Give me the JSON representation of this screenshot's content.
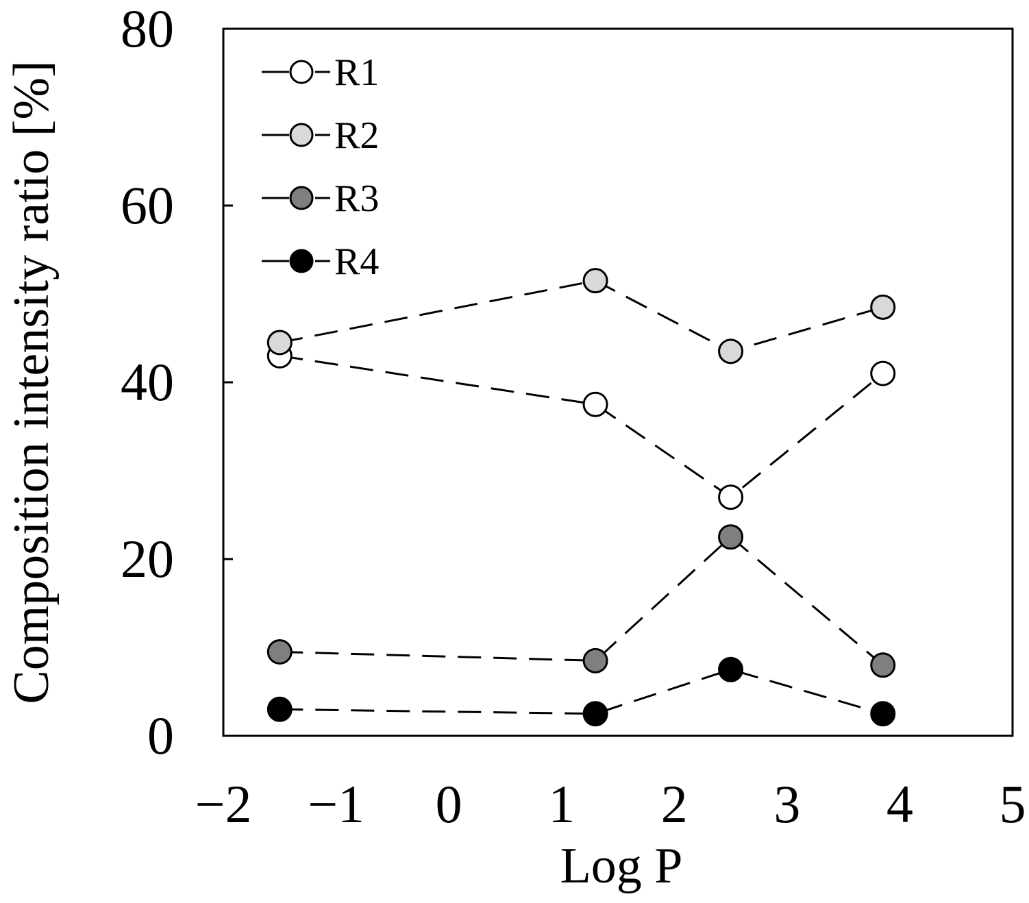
{
  "chart_data": {
    "type": "line",
    "title": "",
    "xlabel": "Log P",
    "ylabel": "Composition intensity ratio [%]",
    "xlim": [
      -2,
      5
    ],
    "ylim": [
      0,
      80
    ],
    "xticks": [
      -2,
      -1,
      0,
      1,
      2,
      3,
      4,
      5
    ],
    "yticks": [
      0,
      20,
      40,
      60,
      80
    ],
    "xtick_labels": [
      "−2",
      "−1",
      "0",
      "1",
      "2",
      "3",
      "4",
      "5"
    ],
    "ytick_labels": [
      "0",
      "20",
      "40",
      "60",
      "80"
    ],
    "grid": false,
    "legend_position": "top-left",
    "line_style": "dashed",
    "line_color": "#000000",
    "series": [
      {
        "name": "R1",
        "color": "#ffffff",
        "x": [
          -1.5,
          1.3,
          2.5,
          3.85
        ],
        "y": [
          43.0,
          37.5,
          27.0,
          41.0
        ]
      },
      {
        "name": "R2",
        "color": "#d9d9d9",
        "x": [
          -1.5,
          1.3,
          2.5,
          3.85
        ],
        "y": [
          44.5,
          51.5,
          43.5,
          48.5
        ]
      },
      {
        "name": "R3",
        "color": "#7f7f7f",
        "x": [
          -1.5,
          1.3,
          2.5,
          3.85
        ],
        "y": [
          9.5,
          8.5,
          22.5,
          8.0
        ]
      },
      {
        "name": "R4",
        "color": "#000000",
        "x": [
          -1.5,
          1.3,
          2.5,
          3.85
        ],
        "y": [
          3.0,
          2.5,
          7.5,
          2.5
        ]
      }
    ]
  }
}
